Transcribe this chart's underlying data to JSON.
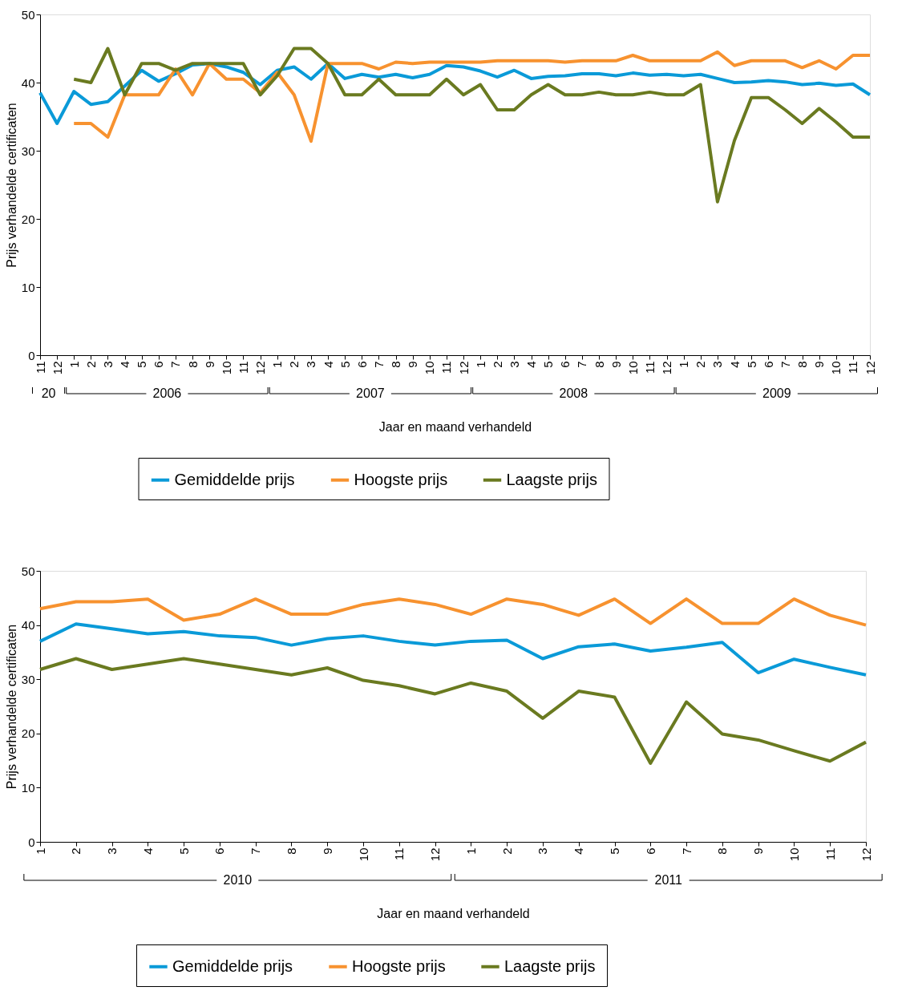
{
  "chart_data": [
    {
      "type": "line",
      "xlabel": "Jaar en maand verhandeld",
      "ylabel": "Prijs verhandelde certificaten",
      "legend": "bottom",
      "grid": false,
      "line_style": "solid",
      "marker": "none",
      "categories": [
        "11",
        "12",
        "1",
        "2",
        "3",
        "4",
        "5",
        "6",
        "7",
        "8",
        "9",
        "10",
        "11",
        "12",
        "1",
        "2",
        "3",
        "4",
        "5",
        "6",
        "7",
        "8",
        "9",
        "10",
        "11",
        "12",
        "1",
        "2",
        "3",
        "4",
        "5",
        "6",
        "7",
        "8",
        "9",
        "10",
        "11",
        "12",
        "1",
        "2",
        "3",
        "4",
        "5",
        "6",
        "7",
        "8",
        "9",
        "10",
        "11",
        "12"
      ],
      "annotations": [
        "20",
        "2006",
        "2007",
        "2008",
        "2009"
      ],
      "ylim": [
        0,
        50
      ],
      "yticks": [
        0,
        10,
        20,
        30,
        40,
        50
      ],
      "series": [
        {
          "name": "Gemiddelde prijs",
          "color": "#0a9ad8",
          "values": [
            38.5,
            34,
            38.7,
            36.8,
            37.2,
            39.5,
            41.8,
            40.2,
            41.3,
            42.6,
            42.8,
            42.3,
            41.5,
            39.7,
            41.8,
            42.3,
            40.5,
            42.8,
            40.6,
            41.2,
            40.8,
            41.2,
            40.7,
            41.2,
            42.5,
            42.3,
            41.7,
            40.8,
            41.8,
            40.6,
            40.9,
            41,
            41.3,
            41.3,
            41,
            41.4,
            41.1,
            41.2,
            41,
            41.2,
            40.6,
            40,
            40.1,
            40.3,
            40.1,
            39.7,
            39.9,
            39.6,
            39.8,
            38.2
          ]
        },
        {
          "name": "Hoogste prijs",
          "color": "#f7922f",
          "values": [
            null,
            null,
            34,
            34,
            32,
            38.2,
            38.2,
            38.2,
            42,
            38.2,
            42.8,
            40.5,
            40.5,
            38.5,
            41.5,
            38.2,
            31.4,
            42.8,
            42.8,
            42.8,
            42,
            43,
            42.8,
            43,
            43,
            43,
            43,
            43.2,
            43.2,
            43.2,
            43.2,
            43,
            43.2,
            43.2,
            43.2,
            44,
            43.2,
            43.2,
            43.2,
            43.2,
            44.5,
            42.5,
            43.2,
            43.2,
            43.2,
            42.2,
            43.2,
            42,
            44,
            44
          ]
        },
        {
          "name": "Laagste prijs",
          "color": "#6a7a20",
          "values": [
            null,
            null,
            40.5,
            40,
            45,
            38.2,
            42.8,
            42.8,
            41.8,
            42.8,
            42.8,
            42.8,
            42.8,
            38.2,
            41,
            45,
            45,
            42.8,
            38.2,
            38.2,
            40.5,
            38.2,
            38.2,
            38.2,
            40.5,
            38.2,
            39.7,
            36,
            36,
            38.2,
            39.7,
            38.2,
            38.2,
            38.6,
            38.2,
            38.2,
            38.6,
            38.2,
            38.2,
            39.7,
            22.5,
            31.5,
            37.8,
            37.8,
            36,
            34,
            36.2,
            34.2,
            32,
            32
          ]
        }
      ]
    },
    {
      "type": "line",
      "xlabel": "Jaar en maand verhandeld",
      "ylabel": "Prijs verhandelde certificaten",
      "legend": "bottom",
      "grid": false,
      "line_style": "solid",
      "marker": "none",
      "categories": [
        "1",
        "2",
        "3",
        "4",
        "5",
        "6",
        "7",
        "8",
        "9",
        "10",
        "11",
        "12",
        "1",
        "2",
        "3",
        "4",
        "5",
        "6",
        "7",
        "8",
        "9",
        "10",
        "11",
        "12"
      ],
      "annotations": [
        "2010",
        "2011"
      ],
      "ylim": [
        0,
        50
      ],
      "yticks": [
        0,
        10,
        20,
        30,
        40,
        50
      ],
      "series": [
        {
          "name": "Gemiddelde prijs",
          "color": "#0a9ad8",
          "values": [
            37.0,
            40.2,
            39.3,
            38.4,
            38.8,
            38.0,
            37.7,
            36.3,
            37.5,
            38.0,
            37.0,
            36.3,
            37.0,
            37.2,
            33.8,
            36.0,
            36.5,
            35.2,
            35.9,
            36.8,
            31.2,
            33.7,
            32.2,
            30.8
          ]
        },
        {
          "name": "Hoogste prijs",
          "color": "#f7922f",
          "values": [
            43.0,
            44.3,
            44.3,
            44.8,
            40.9,
            42.0,
            44.8,
            42.0,
            42.0,
            43.8,
            44.8,
            43.8,
            42.0,
            44.8,
            43.8,
            41.8,
            44.8,
            40.3,
            44.8,
            40.3,
            40.3,
            44.8,
            41.8,
            40.0
          ]
        },
        {
          "name": "Laagste prijs",
          "color": "#6a7a20",
          "values": [
            31.8,
            33.8,
            31.8,
            32.8,
            33.8,
            32.8,
            31.8,
            30.8,
            32.1,
            29.8,
            28.8,
            27.3,
            29.3,
            27.8,
            22.8,
            27.8,
            26.7,
            14.5,
            25.8,
            19.9,
            18.8,
            16.8,
            14.9,
            18.4
          ]
        }
      ]
    }
  ]
}
